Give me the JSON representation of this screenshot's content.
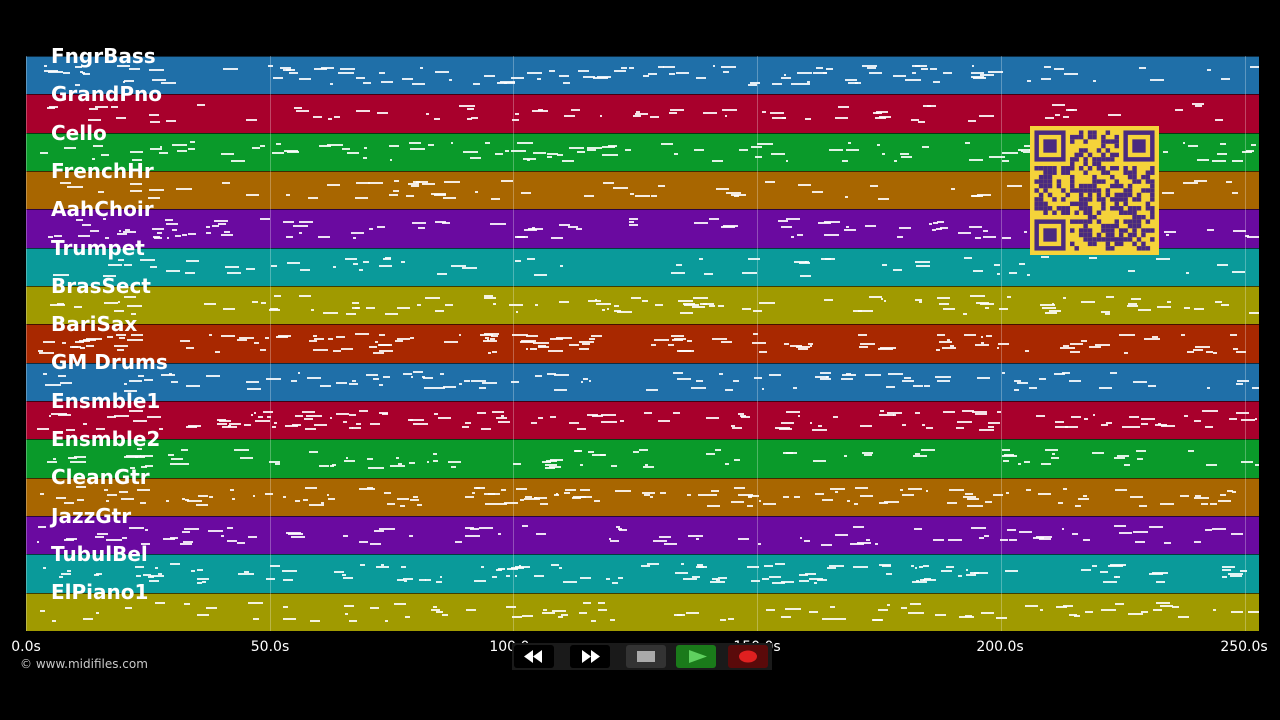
{
  "tracks": [
    {
      "name": "FngrBass",
      "color": "#1f6fa8"
    },
    {
      "name": "GrandPno",
      "color": "#a8002c"
    },
    {
      "name": "Cello",
      "color": "#0a9a2a"
    },
    {
      "name": "FrenchHr",
      "color": "#a86600"
    },
    {
      "name": "AahChoir",
      "color": "#6a0aa0"
    },
    {
      "name": "Trumpet",
      "color": "#0a9a9a"
    },
    {
      "name": "BrasSect",
      "color": "#a09a00"
    },
    {
      "name": "BariSax",
      "color": "#a82800"
    },
    {
      "name": "GM Drums",
      "color": "#1f6fa8"
    },
    {
      "name": "Ensmble1",
      "color": "#a8002c"
    },
    {
      "name": "Ensmble2",
      "color": "#0a9a2a"
    },
    {
      "name": "CleanGtr",
      "color": "#a86600"
    },
    {
      "name": "JazzGtr",
      "color": "#6a0aa0"
    },
    {
      "name": "TubulBel",
      "color": "#0a9a9a"
    },
    {
      "name": "ElPiano1",
      "color": "#a09a00"
    }
  ],
  "timeline": {
    "ticks": [
      "0.0s",
      "50.0s",
      "100.0s",
      "150.0s",
      "200.0s",
      "250.0s"
    ]
  },
  "copyright": "© www.midifiles.com",
  "controls": {
    "icons": [
      "rewind-icon",
      "fast-forward-icon",
      "stop-icon",
      "play-icon",
      "record-icon"
    ]
  },
  "qr": {
    "icon": "qr-code-icon"
  }
}
